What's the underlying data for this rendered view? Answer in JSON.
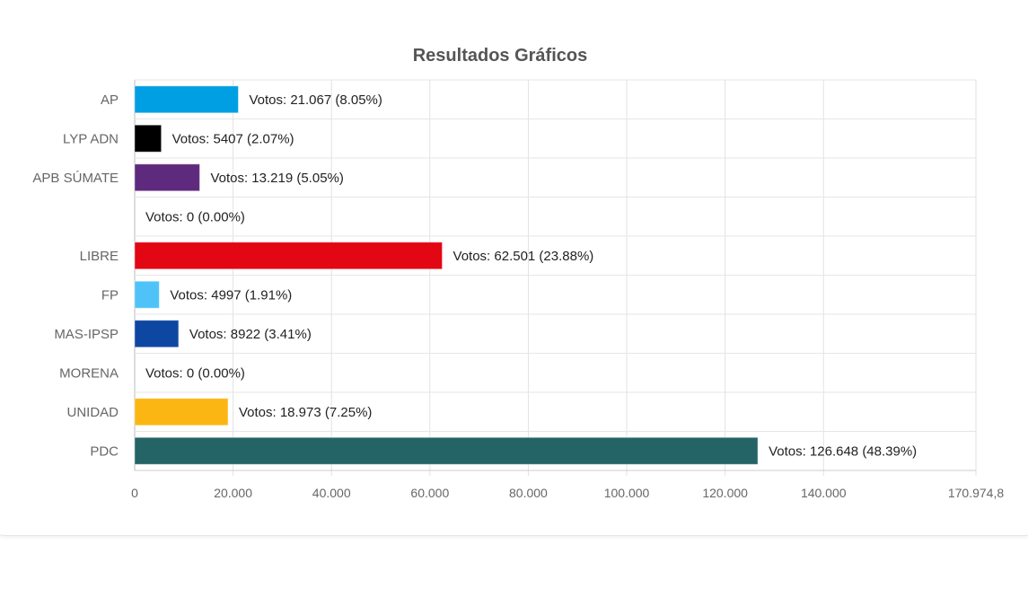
{
  "chart_data": {
    "type": "bar",
    "orientation": "horizontal",
    "title": "Resultados Gráficos",
    "categories": [
      "AP",
      "LYP ADN",
      "APB SÚMATE",
      "",
      "LIBRE",
      "FP",
      "MAS-IPSP",
      "MORENA",
      "UNIDAD",
      "PDC"
    ],
    "values": [
      21067,
      5407,
      13219,
      0,
      62501,
      4997,
      8922,
      0,
      18973,
      126648
    ],
    "data_labels": [
      "Votos: 21.067 (8.05%)",
      "Votos: 5407 (2.07%)",
      "Votos: 13.219 (5.05%)",
      "Votos: 0 (0.00%)",
      "Votos: 62.501 (23.88%)",
      "Votos: 4997 (1.91%)",
      "Votos: 8922 (3.41%)",
      "Votos: 0 (0.00%)",
      "Votos: 18.973 (7.25%)",
      "Votos: 126.648 (48.39%)"
    ],
    "colors": [
      "#009fe3",
      "#000000",
      "#5e2a7e",
      "#cccccc",
      "#e30613",
      "#4fc3f7",
      "#0d47a1",
      "#8b0000",
      "#fbb614",
      "#246466"
    ],
    "xlim": [
      0,
      170974.8
    ],
    "x_ticks": [
      0,
      20000,
      40000,
      60000,
      80000,
      100000,
      120000,
      140000,
      170974.8
    ],
    "x_tick_labels": [
      "0",
      "20.000",
      "40.000",
      "60.000",
      "80.000",
      "100.000",
      "120.000",
      "140.000",
      "170.974,8"
    ],
    "grid": true,
    "legend": "none"
  }
}
